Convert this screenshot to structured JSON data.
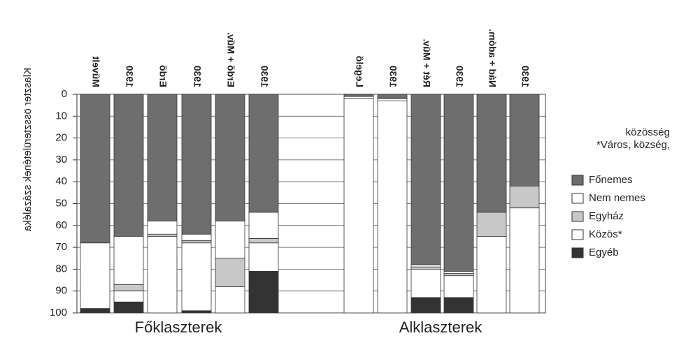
{
  "chart_data": {
    "type": "stacked-bar",
    "ylabel": "Klaszter összterületének százaléka",
    "categories": [
      "Művelt",
      "1930",
      "Erdő",
      "1930",
      "Erdő + Műv.",
      "1930",
      "Legelő",
      "1930",
      "Rét + Műv.",
      "1930",
      "Nád + adóm.",
      "1930"
    ],
    "groups": [
      {
        "label": "Főklaszterek"
      },
      {
        "label": "Alklaszterek"
      }
    ],
    "series": [
      {
        "name": "Főnemes",
        "color": "#6e6e6e",
        "values": [
          68,
          65,
          58,
          64,
          58,
          54,
          1,
          2,
          78,
          81,
          54,
          42
        ]
      },
      {
        "name": "Nem nemes",
        "color": "#ffffff",
        "values": [
          30,
          22,
          6,
          3,
          17,
          12,
          1,
          1,
          1,
          1,
          0,
          0
        ]
      },
      {
        "name": "Egyház",
        "color": "#c8c8c8",
        "values": [
          0,
          3,
          1,
          1,
          13,
          2,
          0,
          0,
          1,
          1,
          11,
          10
        ]
      },
      {
        "name": "Közös*",
        "color": "#ffffff",
        "values": [
          0,
          5,
          35,
          31,
          12,
          13,
          98,
          97,
          13,
          10,
          35,
          48
        ]
      },
      {
        "name": "Egyéb",
        "color": "#333333",
        "values": [
          2,
          5,
          0,
          1,
          0,
          19,
          0,
          0,
          7,
          7,
          0,
          0
        ]
      }
    ],
    "footnote": [
      "*Város, község,",
      "közösség"
    ],
    "ylim": [
      0,
      100
    ],
    "yticks": [
      0,
      10,
      20,
      30,
      40,
      50,
      60,
      70,
      80,
      90,
      100
    ],
    "grid": true
  }
}
